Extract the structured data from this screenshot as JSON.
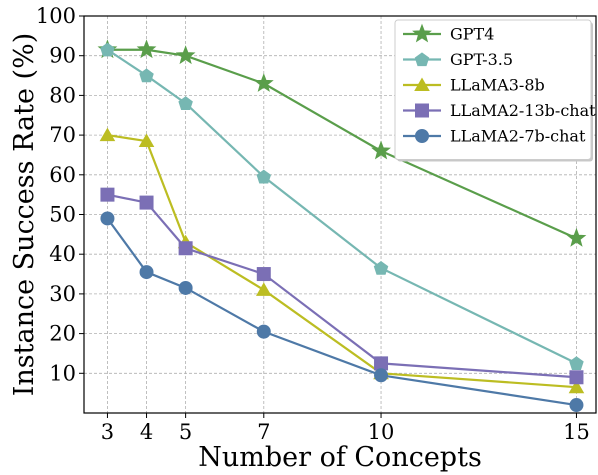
{
  "chart_data": {
    "type": "line",
    "xlabel": "Number of Concepts",
    "ylabel": "Instance Success Rate (%)",
    "x": [
      3,
      4,
      5,
      7,
      10,
      15
    ],
    "xticks": [
      3,
      4,
      5,
      7,
      10,
      15
    ],
    "yticks": [
      10,
      20,
      30,
      40,
      50,
      60,
      70,
      80,
      90,
      100
    ],
    "xlim": [
      2.4,
      15.5
    ],
    "ylim": [
      0,
      100
    ],
    "grid": true,
    "legend_position": "top-right",
    "series": [
      {
        "name": "GPT4",
        "color": "#5a9e4b",
        "marker": "star",
        "values": [
          91.5,
          91.5,
          90,
          83,
          66,
          44
        ]
      },
      {
        "name": "GPT-3.5",
        "color": "#76b7b2",
        "marker": "pentagon",
        "values": [
          91.5,
          85,
          78,
          59.5,
          36.5,
          12.5
        ]
      },
      {
        "name": "LLaMA3-8b",
        "color": "#bcbd22",
        "marker": "triangle",
        "values": [
          70,
          68.5,
          43,
          31,
          10,
          6.5
        ]
      },
      {
        "name": "LLaMA2-13b-chat",
        "color": "#7b6fb5",
        "marker": "square",
        "values": [
          55,
          53,
          41.5,
          35,
          12.5,
          9
        ]
      },
      {
        "name": "LLaMA2-7b-chat",
        "color": "#4e79a7",
        "marker": "circle",
        "values": [
          49,
          35.5,
          31.5,
          20.5,
          9.5,
          2
        ]
      }
    ]
  }
}
